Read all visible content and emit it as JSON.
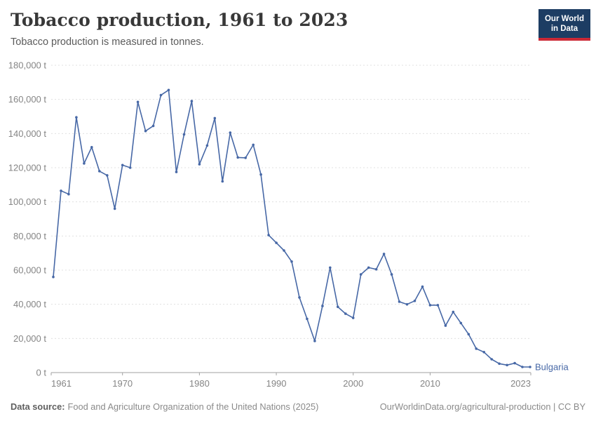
{
  "header": {
    "title": "Tobacco production, 1961 to 2023",
    "subtitle": "Tobacco production is measured in tonnes.",
    "logo": {
      "line1": "Our World",
      "line2": "in Data"
    }
  },
  "chart_data": {
    "type": "line",
    "title": "Tobacco production, 1961 to 2023",
    "ylabel": "tonnes",
    "xlabel": "",
    "xlim": [
      1961,
      2023
    ],
    "ylim": [
      0,
      180000
    ],
    "yticks": [
      0,
      20000,
      40000,
      60000,
      80000,
      100000,
      120000,
      140000,
      160000,
      180000
    ],
    "ytick_suffix": " t",
    "xticks": [
      1961,
      1970,
      1980,
      1990,
      2000,
      2010,
      2023
    ],
    "grid": "horizontal-dashed",
    "legend": "end-of-line-label",
    "series": [
      {
        "name": "Bulgaria",
        "color": "#4768a6",
        "x": [
          1961,
          1962,
          1963,
          1964,
          1965,
          1966,
          1967,
          1968,
          1969,
          1970,
          1971,
          1972,
          1973,
          1974,
          1975,
          1976,
          1977,
          1978,
          1979,
          1980,
          1981,
          1982,
          1983,
          1984,
          1985,
          1986,
          1987,
          1988,
          1989,
          1990,
          1991,
          1992,
          1993,
          1994,
          1995,
          1996,
          1997,
          1998,
          1999,
          2000,
          2001,
          2002,
          2003,
          2004,
          2005,
          2006,
          2007,
          2008,
          2009,
          2010,
          2011,
          2012,
          2013,
          2014,
          2015,
          2016,
          2017,
          2018,
          2019,
          2020,
          2021,
          2022,
          2023
        ],
        "values": [
          56000,
          106500,
          104500,
          149500,
          122500,
          132000,
          118000,
          115500,
          96000,
          121500,
          120000,
          158500,
          141500,
          144500,
          162500,
          165500,
          117500,
          139500,
          159000,
          122000,
          133000,
          149000,
          112000,
          140500,
          126000,
          125800,
          133400,
          116000,
          80500,
          76000,
          71500,
          65000,
          44000,
          31500,
          18500,
          39000,
          61500,
          38500,
          34500,
          32000,
          57500,
          61500,
          60500,
          69500,
          57500,
          41500,
          40000,
          42000,
          50300,
          39500,
          39500,
          27500,
          35500,
          29000,
          22500,
          14000,
          12000,
          7800,
          5200,
          4400,
          5500,
          3300,
          3300
        ]
      }
    ]
  },
  "colors": {
    "series_blue": "#4768a6",
    "gridline": "#e0e0e0",
    "axis": "#a1a1a1",
    "tick_label": "#858585",
    "logo_bg": "#1d3d63",
    "logo_bar": "#cc2936"
  },
  "footer": {
    "source_label": "Data source:",
    "source_text": "Food and Agriculture Organization of the United Nations (2025)",
    "credit": "OurWorldinData.org/agricultural-production | CC BY"
  }
}
